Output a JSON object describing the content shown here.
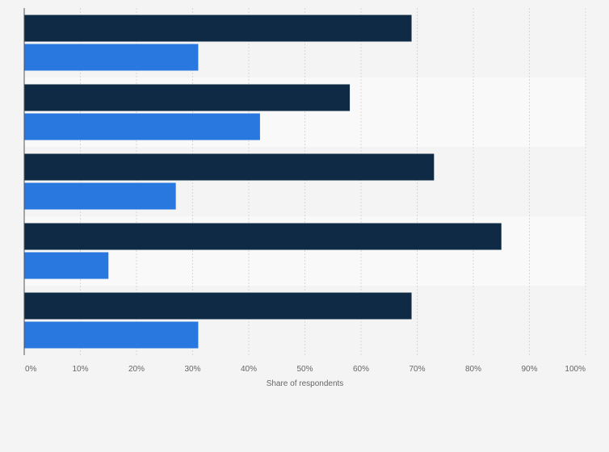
{
  "chart_data": {
    "type": "bar",
    "orientation": "horizontal",
    "categories": [
      "",
      "",
      "",
      "",
      ""
    ],
    "series": [
      {
        "values": [
          69,
          58,
          73,
          85,
          69
        ]
      },
      {
        "values": [
          31,
          42,
          27,
          15,
          31
        ]
      }
    ],
    "colors": {
      "series": [
        "#0f2a44",
        "#2878e0"
      ],
      "band_even": "#f4f4f4",
      "band_odd": "#f9f9f9",
      "grid": "#d7d7d7",
      "axis": "#555555"
    },
    "x_ticks": [
      "0%",
      "10%",
      "20%",
      "30%",
      "40%",
      "50%",
      "60%",
      "70%",
      "80%",
      "90%",
      "100%"
    ],
    "xlim": [
      0,
      100
    ],
    "xlabel": "Share of respondents",
    "ylabel": "",
    "grid": true,
    "legend": "none"
  }
}
